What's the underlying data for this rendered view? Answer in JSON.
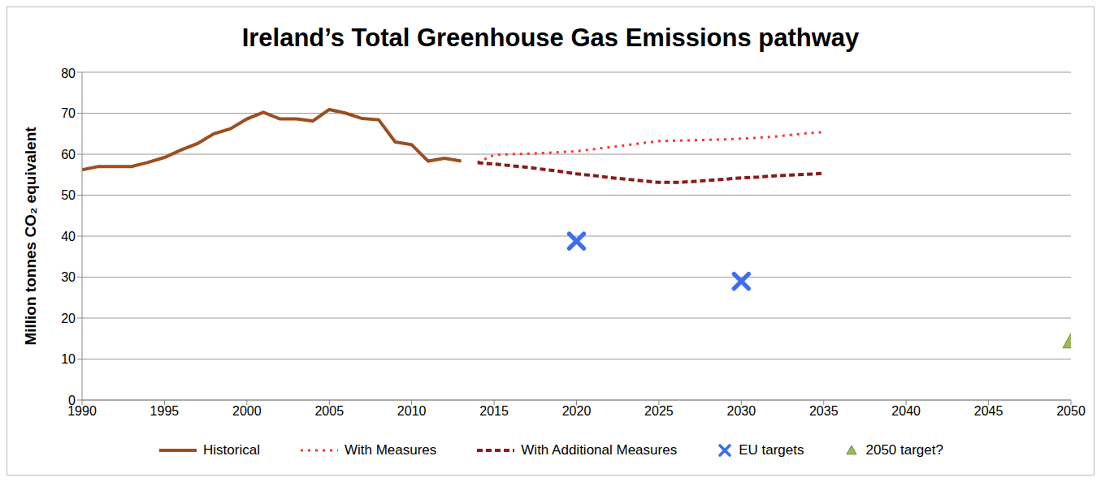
{
  "chart_data": {
    "type": "line",
    "title": "Ireland’s Total Greenhouse Gas Emissions pathway",
    "y_label": "Million tonnes CO₂ equivalent",
    "xlim": [
      1990,
      2050
    ],
    "xticks": [
      1990,
      1995,
      2000,
      2005,
      2010,
      2015,
      2020,
      2025,
      2030,
      2035,
      2040,
      2045,
      2050
    ],
    "ylim": [
      0,
      80
    ],
    "yticks": [
      0,
      10,
      20,
      30,
      40,
      50,
      60,
      70,
      80
    ],
    "grid": true,
    "legend": "bottom",
    "series": [
      {
        "name": "Historical",
        "type": "line",
        "color": "#9c4f1e",
        "line_style": "solid",
        "x": [
          1990,
          1991,
          1992,
          1993,
          1994,
          1995,
          1996,
          1997,
          1998,
          1999,
          2000,
          2001,
          2002,
          2003,
          2004,
          2005,
          2006,
          2007,
          2008,
          2009,
          2010,
          2011,
          2012,
          2013
        ],
        "values": [
          56.2,
          57,
          57,
          57,
          58,
          59.2,
          61,
          62.6,
          65,
          66.2,
          68.6,
          70.2,
          68.6,
          68.6,
          68.1,
          70.9,
          70,
          68.7,
          68.4,
          63,
          62.3,
          58.3,
          59,
          58.3
        ]
      },
      {
        "name": "With Measures",
        "type": "line",
        "color": "#ff3333",
        "line_style": "dotted",
        "x": [
          2014,
          2015,
          2016,
          2017,
          2018,
          2019,
          2020,
          2021,
          2022,
          2023,
          2024,
          2025,
          2026,
          2027,
          2028,
          2029,
          2030,
          2031,
          2032,
          2033,
          2034,
          2035
        ],
        "values": [
          58,
          59.8,
          60,
          60.1,
          60.3,
          60.5,
          60.7,
          61.2,
          61.7,
          62.2,
          62.7,
          63.2,
          63.3,
          63.4,
          63.5,
          63.6,
          63.8,
          64,
          64.3,
          64.7,
          65.1,
          65.4
        ]
      },
      {
        "name": "With Additional Measures",
        "type": "line",
        "color": "#8b1a1a",
        "line_style": "dashed",
        "x": [
          2014,
          2015,
          2016,
          2017,
          2018,
          2019,
          2020,
          2021,
          2022,
          2023,
          2024,
          2025,
          2026,
          2027,
          2028,
          2029,
          2030,
          2031,
          2032,
          2033,
          2034,
          2035
        ],
        "values": [
          57.9,
          57.6,
          57.2,
          56.8,
          56.3,
          55.8,
          55.2,
          54.8,
          54.3,
          53.9,
          53.5,
          53.1,
          53.1,
          53.3,
          53.6,
          53.9,
          54.2,
          54.4,
          54.7,
          54.9,
          55.1,
          55.3
        ]
      },
      {
        "name": "EU targets",
        "type": "scatter",
        "color": "#3b6ff0",
        "marker": "x",
        "x": [
          2020,
          2030
        ],
        "values": [
          38.8,
          29
        ]
      },
      {
        "name": "2050 target?",
        "type": "scatter",
        "color": "#9bbb59",
        "marker": "triangle",
        "x": [
          2050
        ],
        "values": [
          14.3
        ]
      }
    ]
  }
}
